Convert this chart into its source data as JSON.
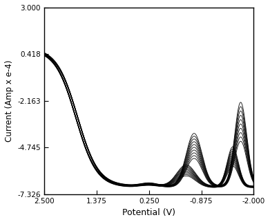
{
  "title": "",
  "xlabel": "Potential (V)",
  "ylabel": "Current (Amp x e-4)",
  "xlim": [
    2.5,
    -2.0
  ],
  "ylim": [
    -7.326,
    3.0
  ],
  "xticks": [
    2.5,
    1.375,
    0.25,
    -0.875,
    -2.0
  ],
  "yticks": [
    3.0,
    0.418,
    -2.163,
    -4.745,
    -7.326
  ],
  "xtick_labels": [
    "2.500",
    "1.375",
    "0.250",
    "-0.875",
    "-2.000"
  ],
  "ytick_labels": [
    "3.000",
    "0.418",
    "-2.163",
    "-4.745",
    "-7.326"
  ],
  "num_cycles": 10,
  "line_color": "#000000",
  "background_color": "#ffffff",
  "figsize": [
    3.91,
    3.21
  ],
  "dpi": 100
}
